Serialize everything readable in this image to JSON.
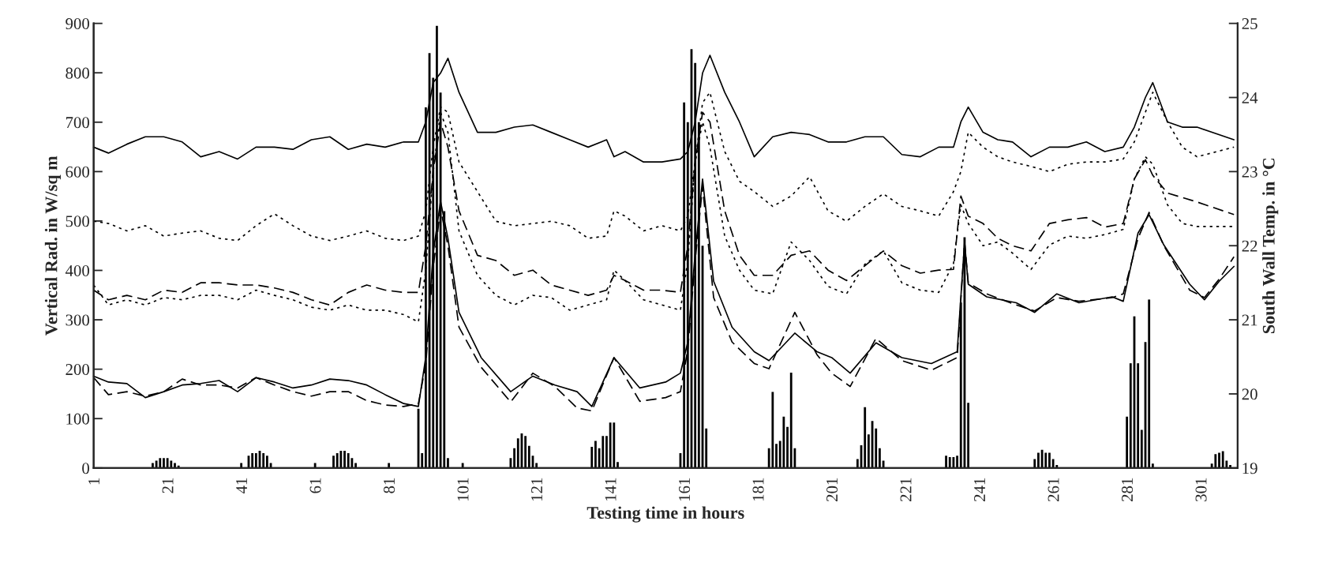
{
  "chart_data": {
    "type": "line",
    "xlabel": "Testing time in hours",
    "ylabel": "Vertical Rad. in W/sq m",
    "y2label": "South Wall Temp. in °C",
    "xlim": [
      1,
      311
    ],
    "xticks": [
      1,
      21,
      41,
      61,
      81,
      101,
      121,
      141,
      161,
      181,
      201,
      221,
      241,
      261,
      281,
      301
    ],
    "ylim": [
      0,
      900
    ],
    "yticks": [
      0,
      100,
      200,
      300,
      400,
      500,
      600,
      700,
      800,
      900
    ],
    "y2lim": [
      19,
      25
    ],
    "y2ticks": [
      19,
      20,
      21,
      22,
      23,
      24,
      25
    ],
    "grid": false,
    "legend": false,
    "marker": "none",
    "series": [
      {
        "type": "bar",
        "color": "#000000",
        "x": [
          17,
          18,
          19,
          20,
          21,
          22,
          23,
          24,
          41,
          43,
          44,
          45,
          46,
          47,
          48,
          49,
          61,
          66,
          67,
          68,
          69,
          70,
          71,
          72,
          81,
          89,
          90,
          91,
          92,
          93,
          94,
          95,
          96,
          97,
          101,
          114,
          115,
          116,
          117,
          118,
          119,
          120,
          121,
          136,
          137,
          138,
          139,
          140,
          141,
          142,
          143,
          160,
          161,
          162,
          163,
          164,
          165,
          166,
          167,
          184,
          185,
          186,
          187,
          188,
          189,
          190,
          191,
          208,
          209,
          210,
          211,
          212,
          213,
          214,
          215,
          232,
          233,
          234,
          235,
          236,
          237,
          238,
          256,
          257,
          258,
          259,
          260,
          261,
          262,
          281,
          282,
          283,
          284,
          285,
          286,
          287,
          288,
          304,
          305,
          306,
          307,
          308,
          309
        ],
        "values": [
          10,
          15,
          20,
          20,
          20,
          15,
          10,
          5,
          10,
          25,
          30,
          30,
          35,
          30,
          25,
          10,
          10,
          25,
          30,
          35,
          35,
          30,
          20,
          10,
          10,
          120,
          30,
          730,
          840,
          790,
          895,
          760,
          520,
          20,
          10,
          20,
          40,
          60,
          70,
          65,
          45,
          25,
          10,
          43,
          55,
          40,
          65,
          65,
          92,
          92,
          12,
          30,
          740,
          700,
          848,
          820,
          700,
          450,
          80,
          40,
          154,
          49,
          55,
          104,
          83,
          193,
          40,
          18,
          46,
          123,
          68,
          95,
          80,
          40,
          15,
          25,
          22,
          22,
          25,
          335,
          467,
          132,
          18,
          31,
          37,
          31,
          31,
          18,
          6,
          104,
          212,
          307,
          212,
          77,
          255,
          341,
          9,
          9,
          28,
          31,
          34,
          15,
          6
        ]
      },
      {
        "axis": "y2",
        "line_style": "solid",
        "color": "#000000",
        "x": [
          1,
          5,
          10,
          15,
          20,
          25,
          30,
          35,
          40,
          45,
          50,
          55,
          60,
          65,
          70,
          75,
          80,
          85,
          89,
          91,
          93,
          95,
          97,
          100,
          105,
          110,
          115,
          120,
          125,
          130,
          135,
          140,
          142,
          145,
          150,
          155,
          160,
          162,
          164,
          166,
          168,
          172,
          176,
          180,
          185,
          190,
          195,
          200,
          205,
          210,
          215,
          220,
          225,
          230,
          234,
          236,
          238,
          242,
          246,
          250,
          255,
          260,
          265,
          270,
          275,
          280,
          283,
          286,
          288,
          292,
          296,
          300,
          310
        ],
        "values": [
          23.33,
          23.25,
          23.37,
          23.47,
          23.47,
          23.4,
          23.2,
          23.27,
          23.17,
          23.33,
          23.33,
          23.3,
          23.43,
          23.47,
          23.3,
          23.37,
          23.33,
          23.4,
          23.4,
          23.67,
          24.2,
          24.33,
          24.53,
          24.07,
          23.53,
          23.53,
          23.6,
          23.63,
          23.53,
          23.43,
          23.33,
          23.43,
          23.2,
          23.27,
          23.13,
          23.13,
          23.17,
          23.27,
          23.67,
          24.33,
          24.57,
          24.07,
          23.67,
          23.2,
          23.47,
          23.53,
          23.5,
          23.4,
          23.4,
          23.47,
          23.47,
          23.23,
          23.2,
          23.33,
          23.33,
          23.67,
          23.87,
          23.53,
          23.43,
          23.4,
          23.2,
          23.33,
          23.33,
          23.4,
          23.27,
          23.33,
          23.6,
          24.0,
          24.2,
          23.67,
          23.6,
          23.6,
          23.43
        ]
      },
      {
        "axis": "y2",
        "line_style": "dotted",
        "color": "#000000",
        "x": [
          1,
          5,
          10,
          15,
          20,
          25,
          30,
          35,
          40,
          45,
          50,
          55,
          60,
          65,
          70,
          75,
          80,
          85,
          89,
          91,
          93,
          95,
          97,
          100,
          105,
          110,
          115,
          120,
          125,
          130,
          135,
          140,
          142,
          145,
          150,
          155,
          160,
          162,
          164,
          166,
          168,
          172,
          176,
          180,
          185,
          190,
          195,
          200,
          205,
          210,
          215,
          220,
          225,
          230,
          234,
          236,
          238,
          242,
          246,
          250,
          255,
          260,
          265,
          270,
          275,
          280,
          283,
          286,
          288,
          292,
          296,
          300,
          310
        ],
        "values": [
          22.33,
          22.3,
          22.2,
          22.27,
          22.13,
          22.17,
          22.2,
          22.1,
          22.07,
          22.27,
          22.43,
          22.27,
          22.13,
          22.07,
          22.13,
          22.2,
          22.1,
          22.07,
          22.13,
          22.47,
          23.33,
          23.87,
          23.8,
          23.13,
          22.73,
          22.33,
          22.27,
          22.3,
          22.33,
          22.27,
          22.1,
          22.13,
          22.47,
          22.4,
          22.2,
          22.27,
          22.2,
          22.4,
          23.13,
          23.93,
          24.07,
          23.27,
          22.87,
          22.73,
          22.53,
          22.67,
          22.93,
          22.47,
          22.33,
          22.53,
          22.7,
          22.53,
          22.47,
          22.4,
          22.73,
          23.0,
          23.53,
          23.33,
          23.2,
          23.13,
          23.07,
          23.0,
          23.1,
          23.13,
          23.13,
          23.17,
          23.4,
          23.8,
          24.07,
          23.67,
          23.33,
          23.2,
          23.33
        ]
      },
      {
        "axis": "y2",
        "line_style": "dashed",
        "color": "#000000",
        "x": [
          1,
          5,
          10,
          15,
          20,
          25,
          30,
          35,
          40,
          45,
          50,
          55,
          60,
          65,
          70,
          75,
          80,
          85,
          89,
          91,
          93,
          95,
          97,
          100,
          105,
          110,
          115,
          120,
          125,
          130,
          135,
          140,
          142,
          145,
          150,
          155,
          160,
          162,
          164,
          166,
          168,
          172,
          176,
          180,
          185,
          190,
          195,
          200,
          205,
          210,
          215,
          220,
          225,
          230,
          234,
          236,
          238,
          242,
          246,
          250,
          255,
          260,
          265,
          270,
          275,
          280,
          283,
          286,
          288,
          292,
          296,
          300,
          310
        ],
        "values": [
          21.4,
          21.27,
          21.33,
          21.27,
          21.4,
          21.37,
          21.5,
          21.5,
          21.47,
          21.47,
          21.43,
          21.37,
          21.27,
          21.2,
          21.37,
          21.47,
          21.4,
          21.37,
          21.37,
          22.0,
          23.0,
          23.67,
          23.33,
          22.47,
          21.87,
          21.8,
          21.6,
          21.67,
          21.47,
          21.4,
          21.33,
          21.4,
          21.6,
          21.53,
          21.4,
          21.4,
          21.37,
          22.0,
          23.13,
          23.8,
          23.67,
          22.47,
          21.87,
          21.6,
          21.6,
          21.87,
          21.93,
          21.67,
          21.53,
          21.73,
          21.93,
          21.73,
          21.63,
          21.67,
          21.68,
          22.67,
          22.4,
          22.3,
          22.1,
          22.0,
          21.93,
          22.3,
          22.35,
          22.38,
          22.25,
          22.3,
          22.9,
          23.16,
          22.95,
          22.71,
          22.65,
          22.59,
          22.42
        ]
      },
      {
        "axis": "y2",
        "line_style": "dotted",
        "color": "#000000",
        "x": [
          1,
          5,
          10,
          15,
          20,
          25,
          30,
          35,
          40,
          45,
          50,
          55,
          60,
          65,
          70,
          75,
          80,
          85,
          89,
          91,
          93,
          95,
          97,
          100,
          105,
          110,
          115,
          120,
          125,
          130,
          135,
          140,
          142,
          145,
          150,
          155,
          160,
          162,
          164,
          166,
          168,
          172,
          176,
          180,
          185,
          190,
          195,
          200,
          205,
          210,
          215,
          220,
          225,
          230,
          234,
          236,
          238,
          242,
          246,
          250,
          255,
          260,
          265,
          270,
          275,
          280,
          283,
          286,
          288,
          292,
          296,
          300,
          310
        ],
        "values": [
          21.47,
          21.2,
          21.27,
          21.2,
          21.3,
          21.27,
          21.33,
          21.33,
          21.27,
          21.4,
          21.33,
          21.27,
          21.17,
          21.13,
          21.2,
          21.13,
          21.13,
          21.07,
          20.97,
          21.67,
          23.0,
          23.8,
          23.53,
          22.2,
          21.6,
          21.33,
          21.2,
          21.33,
          21.3,
          21.13,
          21.2,
          21.27,
          21.67,
          21.53,
          21.27,
          21.2,
          21.13,
          21.8,
          23.13,
          23.67,
          23.33,
          22.13,
          21.67,
          21.4,
          21.35,
          22.05,
          21.8,
          21.45,
          21.35,
          21.75,
          21.93,
          21.5,
          21.4,
          21.37,
          21.76,
          22.55,
          22.3,
          22.0,
          22.05,
          21.9,
          21.68,
          22.01,
          22.13,
          22.1,
          22.15,
          22.22,
          22.9,
          23.2,
          23.1,
          22.55,
          22.3,
          22.26,
          22.26
        ]
      },
      {
        "axis": "y2",
        "line_style": "solid",
        "color": "#000000",
        "x": [
          1,
          5,
          10,
          15,
          20,
          25,
          30,
          35,
          40,
          45,
          50,
          55,
          60,
          65,
          70,
          75,
          80,
          85,
          89,
          91,
          93,
          95,
          97,
          100,
          106,
          114,
          120,
          126,
          132,
          136,
          142,
          149,
          156,
          160,
          162,
          164,
          166,
          169,
          174,
          180,
          184,
          191,
          197,
          201,
          206,
          213,
          220,
          228,
          235,
          237,
          238,
          243,
          251,
          256,
          262,
          268,
          277,
          280,
          284,
          287,
          291,
          298,
          302,
          306,
          310
        ],
        "values": [
          20.24,
          20.16,
          20.14,
          19.95,
          20.03,
          20.12,
          20.14,
          20.18,
          20.03,
          20.22,
          20.16,
          20.08,
          20.12,
          20.2,
          20.18,
          20.12,
          19.99,
          19.87,
          19.83,
          20.5,
          21.9,
          22.6,
          22.1,
          21.1,
          20.49,
          20.03,
          20.24,
          20.12,
          20.03,
          19.83,
          20.49,
          20.08,
          20.16,
          20.28,
          20.7,
          21.9,
          22.9,
          21.52,
          20.9,
          20.57,
          20.45,
          20.82,
          20.57,
          20.49,
          20.28,
          20.69,
          20.49,
          20.41,
          20.57,
          22.05,
          21.48,
          21.31,
          21.23,
          21.1,
          21.35,
          21.23,
          21.31,
          21.25,
          22.17,
          22.42,
          22.01,
          21.48,
          21.27,
          21.52,
          21.72
        ]
      },
      {
        "axis": "y2",
        "line_style": "dashed",
        "color": "#000000",
        "x": [
          1,
          5,
          10,
          15,
          20,
          25,
          30,
          35,
          40,
          45,
          50,
          55,
          60,
          65,
          70,
          75,
          80,
          85,
          89,
          91,
          93,
          95,
          97,
          100,
          106,
          114,
          120,
          126,
          132,
          136,
          142,
          149,
          156,
          160,
          162,
          164,
          166,
          169,
          174,
          180,
          184,
          191,
          197,
          201,
          206,
          213,
          220,
          228,
          235,
          237,
          238,
          243,
          251,
          256,
          262,
          268,
          277,
          280,
          284,
          287,
          291,
          298,
          302,
          306,
          310
        ],
        "values": [
          20.22,
          19.99,
          20.03,
          19.97,
          20.03,
          20.2,
          20.12,
          20.12,
          20.08,
          20.22,
          20.12,
          20.03,
          19.97,
          20.03,
          20.03,
          19.91,
          19.85,
          19.83,
          19.87,
          20.4,
          21.7,
          22.5,
          22.0,
          20.9,
          20.36,
          19.89,
          20.28,
          20.1,
          19.81,
          19.77,
          20.49,
          19.9,
          19.95,
          20.03,
          20.6,
          21.8,
          22.8,
          21.3,
          20.7,
          20.41,
          20.34,
          21.1,
          20.53,
          20.28,
          20.1,
          20.75,
          20.45,
          20.32,
          20.49,
          22.05,
          21.5,
          21.35,
          21.2,
          21.12,
          21.3,
          21.25,
          21.3,
          21.35,
          22.1,
          22.45,
          22.0,
          21.4,
          21.3,
          21.55,
          21.85
        ]
      }
    ]
  }
}
